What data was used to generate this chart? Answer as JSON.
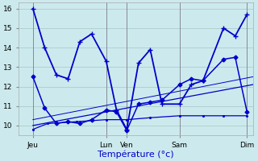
{
  "title": "Température (°c)",
  "bg_color": "#cceaed",
  "grid_color": "#aacccc",
  "line_color": "#0000cc",
  "ylim": [
    9.5,
    16.3
  ],
  "yticks": [
    10,
    11,
    12,
    13,
    14,
    15,
    16
  ],
  "xlim": [
    0,
    8.0
  ],
  "x_tick_positions": [
    0.5,
    3.0,
    3.7,
    5.5,
    7.8
  ],
  "x_tick_labels": [
    "Jeu",
    "Lun",
    "Ven",
    "Sam",
    "Dim"
  ],
  "x_vline_positions": [
    0.5,
    3.0,
    3.7,
    5.5,
    7.8
  ],
  "series1_x": [
    0.5,
    0.9,
    1.3,
    1.7,
    2.1,
    2.5,
    3.0,
    3.35,
    3.7,
    4.1,
    4.5,
    4.9,
    5.5,
    5.9,
    6.3,
    7.0,
    7.4,
    7.8
  ],
  "series1_y": [
    16.0,
    14.0,
    12.6,
    12.4,
    14.3,
    14.7,
    13.3,
    10.8,
    9.8,
    13.2,
    13.9,
    11.1,
    11.1,
    12.1,
    12.3,
    15.0,
    14.6,
    15.7
  ],
  "series2_x": [
    0.5,
    0.9,
    1.3,
    1.7,
    2.1,
    2.5,
    3.0,
    3.35,
    3.7,
    4.1,
    4.5,
    4.9,
    5.5,
    5.9,
    6.3,
    7.0,
    7.4,
    7.8
  ],
  "series2_y": [
    12.5,
    10.9,
    10.1,
    10.2,
    10.1,
    10.3,
    10.8,
    10.7,
    9.75,
    11.1,
    11.2,
    11.3,
    12.1,
    12.4,
    12.3,
    13.4,
    13.5,
    10.7
  ],
  "series3_x": [
    0.5,
    8.0
  ],
  "series3_y": [
    10.0,
    12.1
  ],
  "series4_x": [
    0.5,
    1.0,
    2.0,
    3.0,
    3.7,
    4.5,
    5.5,
    6.3,
    7.0,
    7.8
  ],
  "series4_y": [
    9.8,
    10.1,
    10.2,
    10.3,
    10.3,
    10.4,
    10.5,
    10.5,
    10.5,
    10.5
  ]
}
